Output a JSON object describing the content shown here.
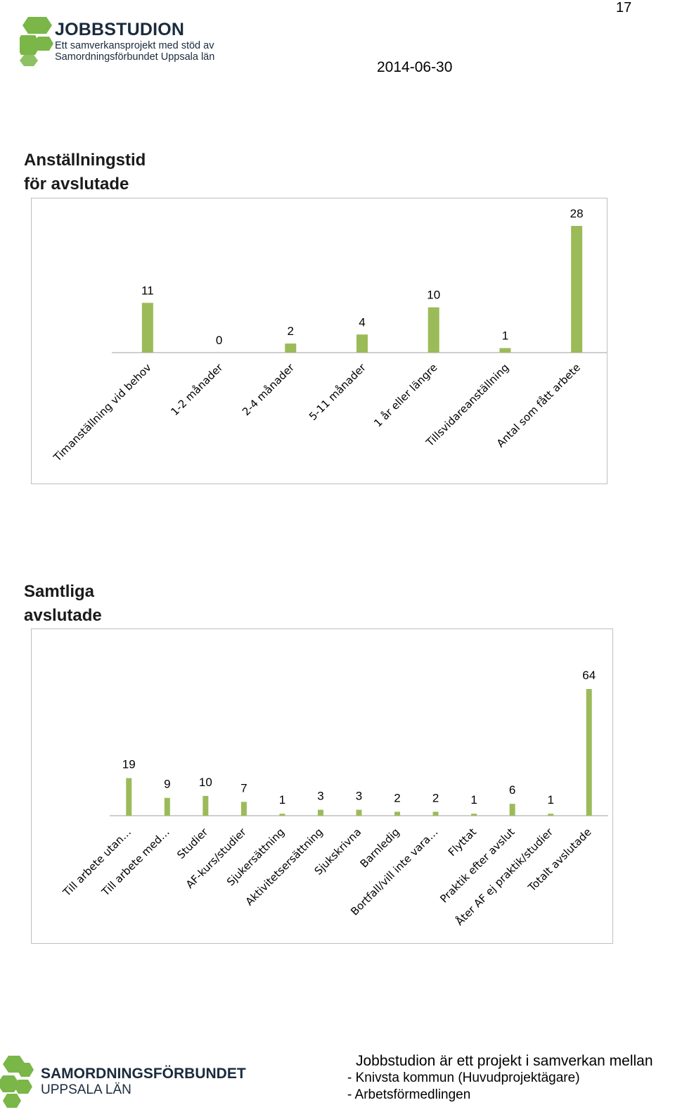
{
  "page_number": "17",
  "header": {
    "logo_title": "JOBBSTUDION",
    "logo_subtitle_1": "Ett samverkansprojekt med stöd av",
    "logo_subtitle_2": "Samordningsförbundet Uppsala län",
    "date": "2014-06-30"
  },
  "colors": {
    "bar": "#9bbb59",
    "logo_green": "#7ab648",
    "axis": "#bfbfbf"
  },
  "chart_data": [
    {
      "type": "bar",
      "title": "Anställningstid för avslutade",
      "title_line1": "Anställningstid",
      "title_line2": "för avslutade",
      "categories": [
        "Timanställning vid behov",
        "1-2 månader",
        "2-4 månader",
        "5-11 månader",
        "1 år eller längre",
        "Tillsvidareanställning",
        "Antal som fått arbete"
      ],
      "values": [
        11,
        0,
        2,
        4,
        10,
        1,
        28
      ],
      "value_labels": [
        "11",
        "0",
        "2",
        "4",
        "10",
        "1",
        "28"
      ],
      "ylim": [
        0,
        28
      ],
      "grid": false,
      "legend": "none"
    },
    {
      "type": "bar",
      "title": "Samtliga avslutade",
      "title_line1": "Samtliga",
      "title_line2": "avslutade",
      "categories": [
        "Till arbete utan…",
        "Till arbete med…",
        "Studier",
        "AF-kurs/studier",
        "Sjukersättning",
        "Aktivitetsersättning",
        "Sjukskrivna",
        "Barnledig",
        "Bortfall/vill inte vara…",
        "Flyttat",
        "Praktik efter avslut",
        "Åter AF ej praktik/studier",
        "Totalt avslutade"
      ],
      "values": [
        19,
        9,
        10,
        7,
        1,
        3,
        3,
        2,
        2,
        1,
        6,
        1,
        64
      ],
      "value_labels": [
        "19",
        "9",
        "10",
        "7",
        "1",
        "3",
        "3",
        "2",
        "2",
        "1",
        "6",
        "1",
        "64"
      ],
      "ylim": [
        0,
        64
      ],
      "grid": false,
      "legend": "none"
    }
  ],
  "footer": {
    "org_name_1": "SAMORDNINGSFÖRBUNDET",
    "org_name_2": "UPPSALA LÄN",
    "text_1": "Jobbstudion är ett projekt i samverkan mellan",
    "text_2": "- Knivsta kommun   (Huvudprojektägare)",
    "text_3": "- Arbetsförmedlingen"
  }
}
